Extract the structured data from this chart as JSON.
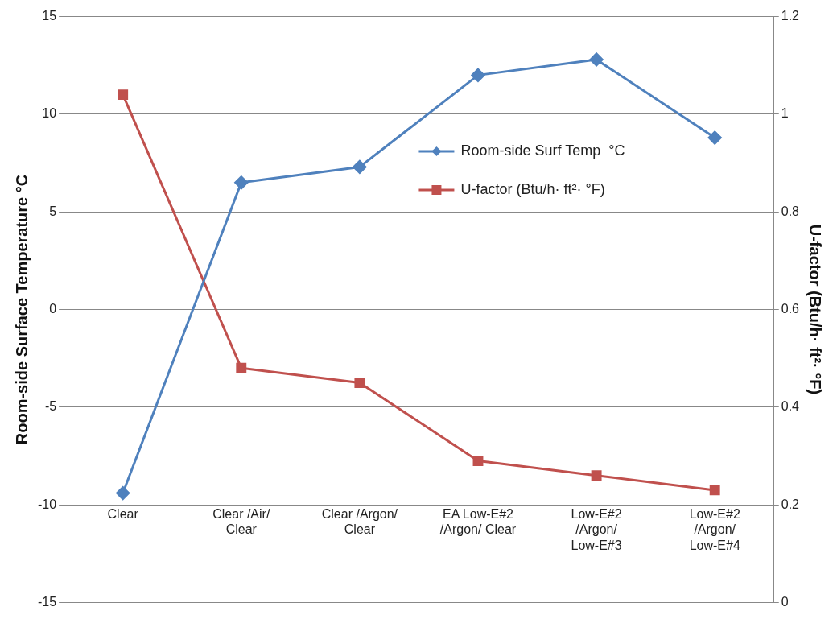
{
  "chart_data": {
    "type": "line",
    "xlabel": null,
    "ylabel": "Room-side Surface Temperature °C",
    "y2label": "U-factor (Btu/h· ft²· °F)",
    "categories": [
      "Clear",
      "Clear /Air/ Clear",
      "Clear /Argon/ Clear",
      "EA Low-E#2 /Argon/ Clear",
      "Low-E#2 /Argon/ Low-E#3",
      "Low-E#2 /Argon/ Low-E#4"
    ],
    "series": [
      {
        "name": "Room-side Surf Temp  °C",
        "color": "#4f81bd",
        "marker": "diamond",
        "values": [
          -9.4,
          6.5,
          7.3,
          12.0,
          12.8,
          8.8
        ]
      },
      {
        "name": "U-factor (Btu/h· ft²· °F)",
        "color": "#c0504d",
        "marker": "square",
        "axis": "y2",
        "values": [
          1.04,
          0.48,
          0.45,
          0.29,
          0.26,
          0.23
        ]
      }
    ],
    "ylim": [
      -15,
      15
    ],
    "yticks": [
      -15,
      -10,
      -5,
      0,
      5,
      10,
      15
    ],
    "y2lim": [
      0,
      1.2
    ],
    "y2ticks": [
      0,
      0.2,
      0.4,
      0.6,
      0.8,
      1,
      1.2
    ],
    "grid": "y",
    "legend": "top right",
    "line_style": "solid"
  }
}
